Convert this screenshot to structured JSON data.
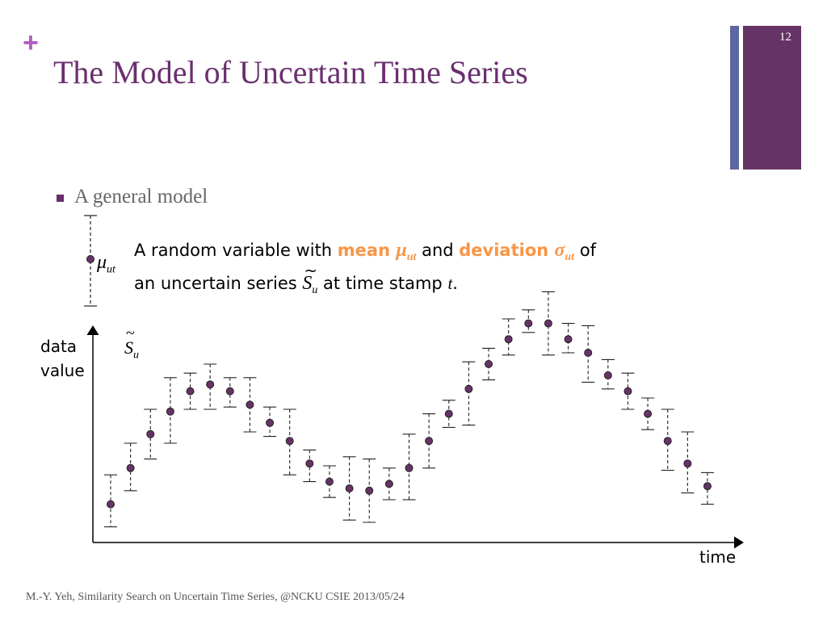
{
  "slide": {
    "plus_sign": "+",
    "title": "The Model of Uncertain Time Series",
    "number": "12",
    "accent_purple": "#663366",
    "accent_blue": "#5f67a0",
    "title_color": "#6a2f6f",
    "highlight_color": "#f79646"
  },
  "bullet": {
    "text": "A general model"
  },
  "legend": {
    "mu_symbol": "μ",
    "mu_sub": "ut"
  },
  "description": {
    "part1": "A random variable with ",
    "mean_label": "mean ",
    "mu_symbol": "μ",
    "mu_sub": "ut",
    "and": " and ",
    "deviation_label": "deviation ",
    "sigma_symbol": "σ",
    "sigma_sub": "ut",
    "of": " of",
    "part2": "an uncertain series ",
    "s_symbol": "S",
    "s_tilde": "~",
    "s_sub": "u",
    "part3": " at time stamp ",
    "t_symbol": "t",
    "period": "."
  },
  "chart_data": {
    "type": "scatter",
    "xlabel": "time",
    "ylabel_line1": "data",
    "ylabel_line2": "value",
    "series_label": "S",
    "series_label_sub": "u",
    "series_label_tilde": "~",
    "points": [
      {
        "mean": 0.13,
        "low": 0.03,
        "high": 0.26
      },
      {
        "mean": 0.29,
        "low": 0.19,
        "high": 0.4
      },
      {
        "mean": 0.44,
        "low": 0.33,
        "high": 0.55
      },
      {
        "mean": 0.54,
        "low": 0.4,
        "high": 0.69
      },
      {
        "mean": 0.63,
        "low": 0.55,
        "high": 0.71
      },
      {
        "mean": 0.66,
        "low": 0.55,
        "high": 0.75
      },
      {
        "mean": 0.63,
        "low": 0.56,
        "high": 0.69
      },
      {
        "mean": 0.57,
        "low": 0.45,
        "high": 0.69
      },
      {
        "mean": 0.49,
        "low": 0.43,
        "high": 0.56
      },
      {
        "mean": 0.41,
        "low": 0.26,
        "high": 0.55
      },
      {
        "mean": 0.31,
        "low": 0.23,
        "high": 0.37
      },
      {
        "mean": 0.23,
        "low": 0.16,
        "high": 0.3
      },
      {
        "mean": 0.2,
        "low": 0.06,
        "high": 0.34
      },
      {
        "mean": 0.19,
        "low": 0.05,
        "high": 0.33
      },
      {
        "mean": 0.22,
        "low": 0.15,
        "high": 0.29
      },
      {
        "mean": 0.29,
        "low": 0.15,
        "high": 0.44
      },
      {
        "mean": 0.41,
        "low": 0.29,
        "high": 0.53
      },
      {
        "mean": 0.53,
        "low": 0.47,
        "high": 0.59
      },
      {
        "mean": 0.64,
        "low": 0.48,
        "high": 0.76
      },
      {
        "mean": 0.75,
        "low": 0.68,
        "high": 0.82
      },
      {
        "mean": 0.86,
        "low": 0.79,
        "high": 0.95
      },
      {
        "mean": 0.93,
        "low": 0.89,
        "high": 0.99
      },
      {
        "mean": 0.93,
        "low": 0.79,
        "high": 1.07
      },
      {
        "mean": 0.86,
        "low": 0.8,
        "high": 0.93
      },
      {
        "mean": 0.8,
        "low": 0.67,
        "high": 0.92
      },
      {
        "mean": 0.7,
        "low": 0.64,
        "high": 0.77
      },
      {
        "mean": 0.63,
        "low": 0.55,
        "high": 0.71
      },
      {
        "mean": 0.53,
        "low": 0.46,
        "high": 0.6
      },
      {
        "mean": 0.41,
        "low": 0.28,
        "high": 0.55
      },
      {
        "mean": 0.31,
        "low": 0.18,
        "high": 0.45
      },
      {
        "mean": 0.21,
        "low": 0.13,
        "high": 0.27
      }
    ],
    "point_color": "#663366"
  },
  "footer": {
    "text": "M.-Y. Yeh, Similarity Search on Uncertain Time Series,  @NCKU CSIE 2013/05/24"
  }
}
